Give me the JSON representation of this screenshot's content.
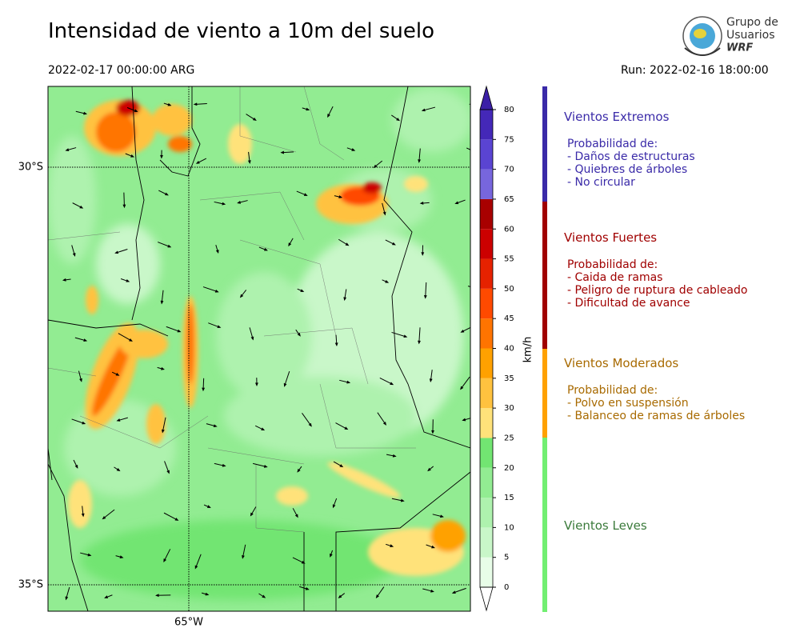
{
  "header": {
    "title": "Intensidad de viento a 10m del suelo",
    "valid_time": "2022-02-17 00:00:00 ARG",
    "run": "Run: 2022-02-16 18:00:00"
  },
  "logo": {
    "lines": [
      "Grupo de",
      "Usuarios",
      "WRF"
    ]
  },
  "map": {
    "lat_labels": [
      "30°S",
      "35°S"
    ],
    "lon_labels": [
      "65°W"
    ]
  },
  "colorbar": {
    "label": "km/h",
    "ticks": [
      0,
      5,
      10,
      15,
      20,
      25,
      30,
      35,
      40,
      45,
      50,
      55,
      60,
      65,
      70,
      75,
      80
    ],
    "colors": [
      "#e8fde8",
      "#c9f7c9",
      "#aef2ae",
      "#92ec92",
      "#72e572",
      "#ffe27a",
      "#ffc23f",
      "#ffa100",
      "#ff7400",
      "#ff4a00",
      "#e62200",
      "#cc0000",
      "#a80000",
      "#7766dd",
      "#5a44d2",
      "#4428b8"
    ],
    "over_color": "#3b1fa6",
    "under_color": "#ffffff"
  },
  "legend": [
    {
      "title": "Vientos Extremos",
      "color": "#3a2aa8",
      "bar_color": "#3a2aa8",
      "lines": [
        "Probabilidad de:",
        "- Daños de estructuras",
        "- Quiebres de árboles",
        "- No circular"
      ]
    },
    {
      "title": "Vientos Fuertes",
      "color": "#a00000",
      "bar_color": "#a00000",
      "lines": [
        "Probabilidad de:",
        "- Caida de ramas",
        "- Peligro de ruptura de cableado",
        "- Dificultad de avance"
      ]
    },
    {
      "title": "Vientos Moderados",
      "color": "#a86a00",
      "bar_color": "#ffa100",
      "lines": [
        "Probabilidad de:",
        "- Polvo en suspensión",
        "- Balanceo de ramas de árboles"
      ]
    },
    {
      "title": "Vientos Leves",
      "color": "#3a7a3a",
      "bar_color": "#72ef72",
      "lines": []
    }
  ]
}
